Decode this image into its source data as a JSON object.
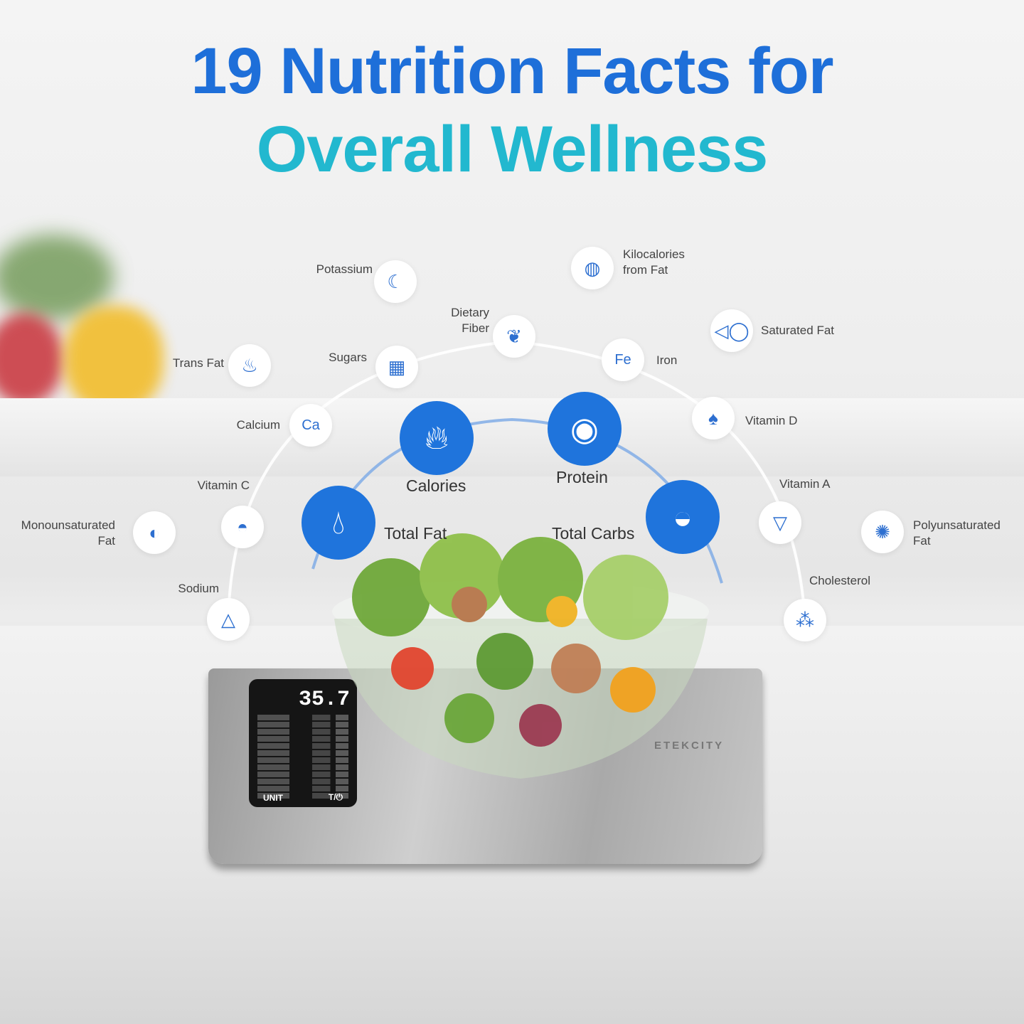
{
  "headline": {
    "line1": "19 Nutrition Facts for",
    "line2": "Overall Wellness",
    "color1": "#1e6fd9",
    "color2": "#22b8cf"
  },
  "major": [
    {
      "label": "Calories",
      "icon": "flame-icon"
    },
    {
      "label": "Protein",
      "icon": "fried-egg-icon"
    },
    {
      "label": "Total Fat",
      "icon": "droplets-icon"
    },
    {
      "label": "Total Carbs",
      "icon": "rice-bowl-icon"
    }
  ],
  "minor": [
    {
      "label": "Potassium",
      "icon": "banana-icon"
    },
    {
      "label": "Kilocalories\nfrom Fat",
      "icon": "steak-icon"
    },
    {
      "label": "Dietary\nFiber",
      "icon": "wheat-icon"
    },
    {
      "label": "Saturated Fat",
      "icon": "fish-icon"
    },
    {
      "label": "Sugars",
      "icon": "sugar-cubes-icon"
    },
    {
      "label": "Iron",
      "icon": "iron-pill-icon"
    },
    {
      "label": "Trans Fat",
      "icon": "cupcake-icon"
    },
    {
      "label": "Calcium",
      "icon": "calcium-jar-icon"
    },
    {
      "label": "Vitamin D",
      "icon": "mushroom-icon"
    },
    {
      "label": "Vitamin C",
      "icon": "lemon-icon"
    },
    {
      "label": "Vitamin A",
      "icon": "carrot-icon"
    },
    {
      "label": "Monounsaturated\nFat",
      "icon": "avocado-icon"
    },
    {
      "label": "Polyunsaturated\nFat",
      "icon": "walnut-icon"
    },
    {
      "label": "Sodium",
      "icon": "salt-icon"
    },
    {
      "label": "Cholesterol",
      "icon": "artery-icon"
    }
  ],
  "scale": {
    "reading": "35.7",
    "unit_button": "UNIT",
    "tare_button": "T/⏻",
    "brand": "ETEKCITY"
  }
}
